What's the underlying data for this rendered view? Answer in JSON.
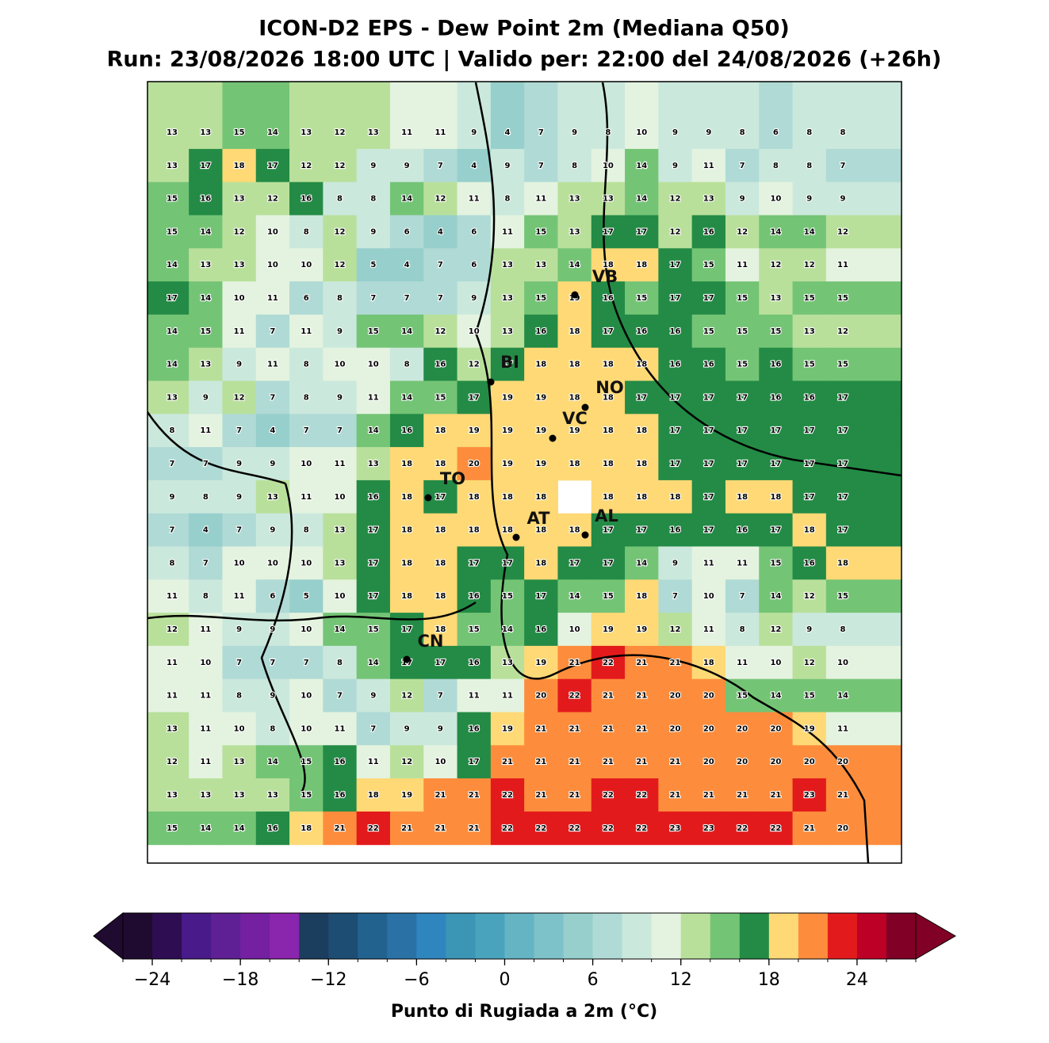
{
  "title": "ICON-D2 EPS - Dew Point 2m (Mediana Q50)",
  "subtitle": "Run: 23/08/2026 18:00 UTC | Valido per: 22:00 del 24/08/2026 (+26h)",
  "map": {
    "grid": [
      [
        13,
        13,
        15,
        14,
        13,
        12,
        13,
        11,
        11,
        9,
        4,
        7,
        9,
        8,
        10,
        9,
        9,
        8,
        6,
        8,
        8
      ],
      [
        13,
        17,
        18,
        17,
        12,
        12,
        9,
        9,
        7,
        4,
        9,
        7,
        8,
        10,
        14,
        9,
        11,
        7,
        8,
        8,
        7
      ],
      [
        15,
        16,
        13,
        12,
        16,
        8,
        8,
        14,
        12,
        11,
        8,
        11,
        13,
        13,
        14,
        12,
        13,
        9,
        10,
        9,
        9
      ],
      [
        15,
        14,
        12,
        10,
        8,
        12,
        9,
        6,
        4,
        6,
        11,
        15,
        13,
        17,
        17,
        12,
        16,
        12,
        14,
        14,
        12
      ],
      [
        14,
        13,
        13,
        10,
        10,
        12,
        5,
        4,
        7,
        6,
        13,
        13,
        14,
        18,
        18,
        17,
        15,
        11,
        12,
        12,
        11
      ],
      [
        17,
        14,
        10,
        11,
        6,
        8,
        7,
        7,
        7,
        9,
        13,
        15,
        19,
        16,
        15,
        17,
        17,
        15,
        13,
        15,
        15
      ],
      [
        14,
        15,
        11,
        7,
        11,
        9,
        15,
        14,
        12,
        10,
        13,
        16,
        18,
        17,
        16,
        16,
        15,
        15,
        15,
        13,
        12
      ],
      [
        14,
        13,
        9,
        11,
        8,
        10,
        10,
        8,
        16,
        12,
        17,
        18,
        18,
        18,
        18,
        16,
        16,
        15,
        16,
        15,
        15
      ],
      [
        13,
        9,
        12,
        7,
        8,
        9,
        11,
        14,
        15,
        17,
        19,
        19,
        18,
        18,
        17,
        17,
        17,
        17,
        16,
        16,
        17
      ],
      [
        8,
        11,
        7,
        4,
        7,
        7,
        14,
        16,
        18,
        19,
        19,
        19,
        19,
        18,
        18,
        17,
        17,
        17,
        17,
        17,
        17
      ],
      [
        7,
        7,
        9,
        9,
        10,
        11,
        13,
        18,
        18,
        20,
        19,
        19,
        18,
        18,
        18,
        17,
        17,
        17,
        17,
        17,
        17
      ],
      [
        9,
        8,
        9,
        13,
        11,
        10,
        16,
        18,
        17,
        18,
        18,
        18,
        null,
        18,
        18,
        18,
        17,
        18,
        18,
        17,
        17
      ],
      [
        7,
        4,
        7,
        9,
        8,
        13,
        17,
        18,
        18,
        18,
        18,
        18,
        18,
        17,
        17,
        16,
        17,
        16,
        17,
        18,
        17
      ],
      [
        8,
        7,
        10,
        10,
        10,
        13,
        17,
        18,
        18,
        17,
        17,
        18,
        17,
        17,
        14,
        9,
        11,
        11,
        15,
        16,
        18
      ],
      [
        11,
        8,
        11,
        6,
        5,
        10,
        17,
        18,
        18,
        16,
        15,
        17,
        14,
        15,
        18,
        7,
        10,
        7,
        14,
        12,
        15
      ],
      [
        12,
        11,
        9,
        9,
        10,
        14,
        15,
        17,
        18,
        15,
        14,
        16,
        10,
        19,
        19,
        12,
        11,
        8,
        12,
        9,
        8
      ],
      [
        11,
        10,
        7,
        7,
        7,
        8,
        14,
        17,
        17,
        16,
        13,
        19,
        21,
        22,
        21,
        21,
        18,
        11,
        10,
        12,
        10
      ],
      [
        11,
        11,
        8,
        9,
        10,
        7,
        9,
        12,
        7,
        11,
        11,
        20,
        22,
        21,
        21,
        20,
        20,
        15,
        14,
        15,
        14
      ],
      [
        13,
        11,
        10,
        8,
        10,
        11,
        7,
        9,
        9,
        16,
        19,
        21,
        21,
        21,
        21,
        20,
        20,
        20,
        20,
        19,
        11
      ],
      [
        12,
        11,
        13,
        14,
        15,
        16,
        11,
        12,
        10,
        17,
        21,
        21,
        21,
        21,
        21,
        21,
        20,
        20,
        20,
        20,
        20
      ],
      [
        13,
        13,
        13,
        13,
        15,
        16,
        18,
        19,
        21,
        21,
        22,
        21,
        21,
        22,
        22,
        21,
        21,
        21,
        21,
        23,
        21
      ],
      [
        15,
        14,
        14,
        16,
        18,
        21,
        22,
        21,
        21,
        21,
        22,
        22,
        22,
        22,
        22,
        23,
        23,
        22,
        22,
        21,
        20
      ]
    ],
    "cities": [
      "VB",
      "BI",
      "NO",
      "VC",
      "TO",
      "AT",
      "AL",
      "CN"
    ]
  },
  "colorbar": {
    "levels": [
      -26,
      -24,
      -22,
      -20,
      -18,
      -16,
      -14,
      -12,
      -10,
      -8,
      -6,
      -4,
      -2,
      0,
      2,
      4,
      6,
      8,
      10,
      12,
      14,
      16,
      18,
      20,
      22,
      24,
      26,
      28
    ],
    "colors": [
      "#1f0a30",
      "#2e0d52",
      "#481a8a",
      "#5f2096",
      "#7420a0",
      "#8a25ad",
      "#1b3d5e",
      "#1d4d73",
      "#22628f",
      "#2a72a6",
      "#2f86bf",
      "#3b95b5",
      "#4aa3bc",
      "#64b4c4",
      "#7dc2c8",
      "#97cfcc",
      "#b0dad5",
      "#cbe8dd",
      "#e3f3df",
      "#b9e09b",
      "#74c476",
      "#238b45",
      "#fed976",
      "#fd8d3c",
      "#e31a1c",
      "#bd0026",
      "#800026"
    ],
    "ticks": [
      {
        "value": -24,
        "label": "−24"
      },
      {
        "value": -18,
        "label": "−18"
      },
      {
        "value": -12,
        "label": "−12"
      },
      {
        "value": -6,
        "label": "−6"
      },
      0,
      6,
      12,
      18,
      24
    ],
    "label": "Punto di Rugiada a 2m (°C)"
  }
}
